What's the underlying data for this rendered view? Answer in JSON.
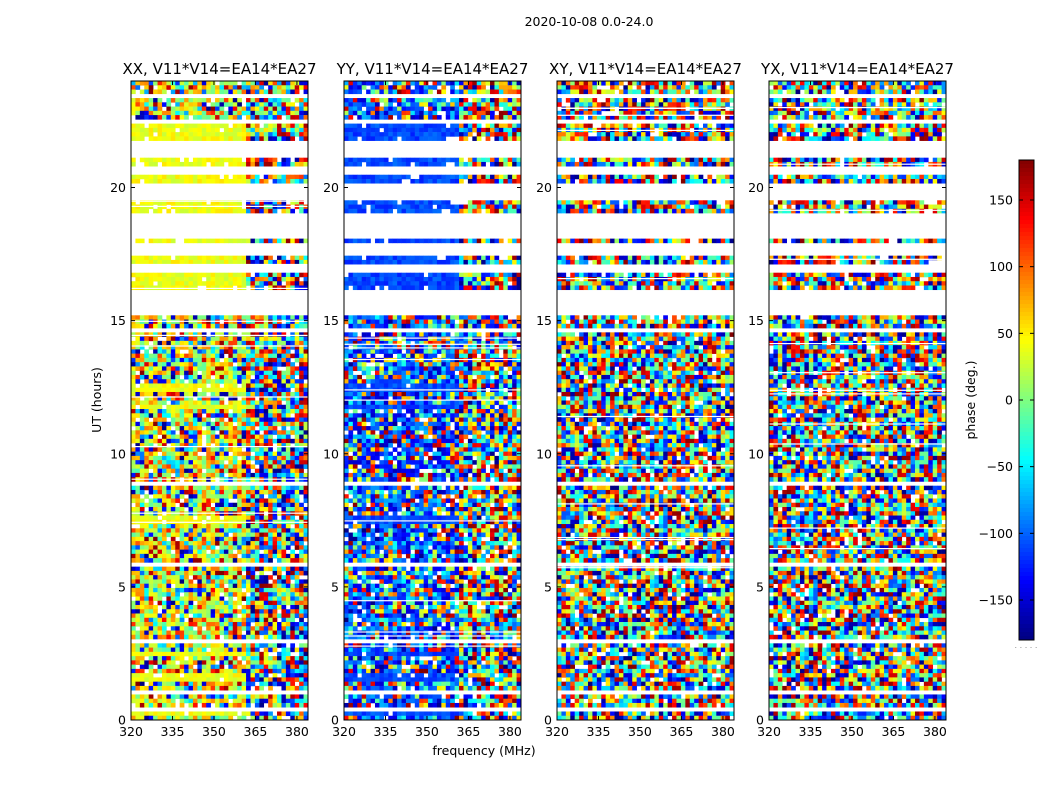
{
  "chart_data": {
    "type": "heatmap",
    "title": "2020-10-08 0.0-24.0",
    "xlabel": "frequency (MHz)",
    "ylabel": "UT (hours)",
    "xlim": [
      320,
      384
    ],
    "ylim": [
      0,
      24
    ],
    "xticks": [
      320,
      335,
      350,
      365,
      380
    ],
    "yticks": [
      0,
      5,
      10,
      15,
      20
    ],
    "panels": [
      {
        "title": "XX, V11*V14=EA14*EA27",
        "mean_phase_deg": 40,
        "spread_deg": 55
      },
      {
        "title": "YY, V11*V14=EA14*EA27",
        "mean_phase_deg": -110,
        "spread_deg": 45
      },
      {
        "title": "XY, V11*V14=EA14*EA27",
        "mean_phase_deg": 0,
        "spread_deg": 180
      },
      {
        "title": "YX, V11*V14=EA14*EA27",
        "mean_phase_deg": 0,
        "spread_deg": 180
      }
    ],
    "colorbar": {
      "label": "phase (deg.)",
      "range": [
        -180,
        180
      ],
      "ticks": [
        150,
        100,
        50,
        0,
        -50,
        -100,
        -150
      ],
      "tick_labels": [
        "150",
        "100",
        "50",
        "0",
        "−50",
        "−100",
        "−150"
      ],
      "colormap": "jet"
    },
    "flagged_ut_ranges": [
      [
        0.35,
        0.45
      ],
      [
        1.0,
        1.1
      ],
      [
        2.95,
        3.05
      ],
      [
        5.75,
        5.85
      ],
      [
        8.8,
        8.9
      ],
      [
        12.25,
        12.35
      ],
      [
        14.55,
        14.65
      ],
      [
        15.25,
        16.2
      ],
      [
        16.75,
        17.05
      ],
      [
        17.4,
        18.0
      ],
      [
        18.15,
        19.05
      ],
      [
        19.5,
        20.1
      ],
      [
        20.45,
        20.85
      ],
      [
        21.1,
        21.8
      ],
      [
        22.45,
        22.6
      ],
      [
        22.85,
        22.95
      ],
      [
        23.4,
        23.5
      ]
    ],
    "uniform_ut_ranges": [
      [
        0.1,
        0.35
      ],
      [
        1.45,
        1.7
      ],
      [
        2.35,
        2.5
      ],
      [
        7.4,
        7.7
      ],
      [
        11.7,
        11.85
      ],
      [
        12.4,
        12.6
      ],
      [
        16.2,
        16.75
      ],
      [
        17.05,
        17.4
      ],
      [
        18.0,
        18.15
      ],
      [
        19.05,
        19.5
      ],
      [
        20.1,
        20.45
      ],
      [
        20.85,
        21.1
      ],
      [
        21.8,
        22.45
      ]
    ]
  }
}
